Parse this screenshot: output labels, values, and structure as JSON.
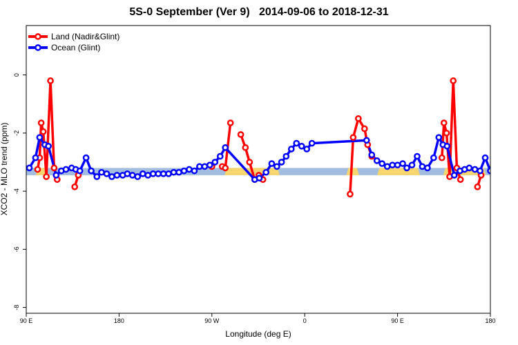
{
  "chart_data": {
    "type": "line",
    "title": "5S-0 September (Ver 9)   2014-09-06 to 2018-12-31",
    "xlabel": "Longitude (deg E)",
    "ylabel": "XCO2 - MLO trend (ppm)",
    "x_unit_note": "continuous longitude axis starting at 90E; 90=90E, 180=180, 270=90W, 360=0, 450=90E, 540=180",
    "xlim": [
      90,
      540
    ],
    "ylim": [
      -8.2,
      1.7
    ],
    "x_ticks": [
      {
        "value": 90,
        "label": "90 E"
      },
      {
        "value": 180,
        "label": "180"
      },
      {
        "value": 270,
        "label": "90 W"
      },
      {
        "value": 360,
        "label": "0"
      },
      {
        "value": 450,
        "label": "90 E"
      },
      {
        "value": 540,
        "label": "180"
      }
    ],
    "y_ticks": [
      {
        "value": 0,
        "label": "0"
      },
      {
        "value": -2,
        "label": "-2"
      },
      {
        "value": -4,
        "label": "-4"
      },
      {
        "value": -6,
        "label": "-6"
      },
      {
        "value": -8,
        "label": "-8"
      }
    ],
    "legend_position": "top-left",
    "surface_band": {
      "y_top": -3.2,
      "y_bottom": -3.45,
      "ocean_color": "#a3bde0",
      "land_color": "#f7d66f",
      "land_ranges": [
        [
          100,
          110
        ],
        [
          283,
          335
        ],
        [
          401,
          412
        ],
        [
          431,
          471
        ],
        [
          495,
          504
        ],
        [
          508,
          535
        ]
      ]
    },
    "series": [
      {
        "name": "Land (Nadir&Glint)",
        "color": "#ff0000",
        "segments": [
          [
            [
              101,
              -3.25
            ],
            [
              103,
              -2.85
            ],
            [
              104.5,
              -1.65
            ],
            [
              106.5,
              -1.95
            ],
            [
              109.5,
              -3.5
            ],
            [
              113.5,
              -0.2
            ],
            [
              117,
              -3.2
            ],
            [
              120,
              -3.6
            ]
          ],
          [
            [
              137,
              -3.85
            ],
            [
              140.5,
              -3.45
            ]
          ],
          [
            [
              270,
              -3.15
            ]
          ],
          [
            [
              280,
              -3.15
            ],
            [
              283,
              -3.2
            ],
            [
              288,
              -1.65
            ]
          ],
          [
            [
              298,
              -2.05
            ],
            [
              302.5,
              -2.5
            ],
            [
              306.5,
              -3.0
            ],
            [
              311.5,
              -3.6
            ],
            [
              315.5,
              -3.45
            ],
            [
              319.5,
              -3.6
            ]
          ],
          [
            [
              404,
              -4.1
            ],
            [
              407,
              -2.15
            ],
            [
              412,
              -1.5
            ],
            [
              418,
              -1.85
            ],
            [
              421,
              -2.4
            ],
            [
              425,
              -2.8
            ]
          ],
          [
            [
              493,
              -2.85
            ],
            [
              495,
              -1.65
            ],
            [
              497.5,
              -2.0
            ],
            [
              500.5,
              -3.5
            ],
            [
              504,
              -0.2
            ],
            [
              507.5,
              -3.2
            ],
            [
              511,
              -3.6
            ]
          ],
          [
            [
              527.5,
              -3.85
            ],
            [
              531,
              -3.45
            ]
          ]
        ]
      },
      {
        "name": "Ocean (Glint)",
        "color": "#0000ff",
        "points": [
          [
            93,
            -3.2
          ],
          [
            99,
            -2.85
          ],
          [
            103,
            -2.15
          ],
          [
            108,
            -2.4
          ],
          [
            111.5,
            -2.45
          ],
          [
            119,
            -3.45
          ],
          [
            124,
            -3.3
          ],
          [
            128.5,
            -3.25
          ],
          [
            134,
            -3.2
          ],
          [
            138,
            -3.25
          ],
          [
            142,
            -3.3
          ],
          [
            148,
            -2.85
          ],
          [
            153,
            -3.3
          ],
          [
            158.5,
            -3.5
          ],
          [
            163,
            -3.35
          ],
          [
            168,
            -3.4
          ],
          [
            173,
            -3.5
          ],
          [
            178,
            -3.45
          ],
          [
            183.5,
            -3.45
          ],
          [
            188,
            -3.4
          ],
          [
            193,
            -3.45
          ],
          [
            198,
            -3.5
          ],
          [
            203,
            -3.4
          ],
          [
            208,
            -3.45
          ],
          [
            213,
            -3.4
          ],
          [
            218,
            -3.4
          ],
          [
            223,
            -3.4
          ],
          [
            228,
            -3.4
          ],
          [
            233,
            -3.35
          ],
          [
            238,
            -3.35
          ],
          [
            243,
            -3.3
          ],
          [
            248,
            -3.25
          ],
          [
            253,
            -3.3
          ],
          [
            258,
            -3.15
          ],
          [
            263,
            -3.15
          ],
          [
            268,
            -3.1
          ],
          [
            273,
            -3.0
          ],
          [
            278,
            -2.8
          ],
          [
            283,
            -2.5
          ],
          [
            311.5,
            -3.6
          ],
          [
            316,
            -3.55
          ],
          [
            322.5,
            -3.35
          ],
          [
            328,
            -3.05
          ],
          [
            333,
            -3.15
          ],
          [
            337.5,
            -3.0
          ],
          [
            342,
            -2.8
          ],
          [
            347,
            -2.55
          ],
          [
            352,
            -2.35
          ],
          [
            357,
            -2.45
          ],
          [
            362,
            -2.55
          ],
          [
            367,
            -2.35
          ],
          [
            420,
            -2.25
          ],
          [
            425,
            -2.75
          ],
          [
            430,
            -2.95
          ],
          [
            435,
            -3.05
          ],
          [
            440,
            -3.15
          ],
          [
            445,
            -3.1
          ],
          [
            450,
            -3.1
          ],
          [
            455,
            -3.05
          ],
          [
            459,
            -3.2
          ],
          [
            464,
            -3.1
          ],
          [
            469,
            -2.8
          ],
          [
            474,
            -3.15
          ],
          [
            479,
            -3.2
          ],
          [
            485,
            -2.85
          ],
          [
            490,
            -2.15
          ],
          [
            494,
            -2.4
          ],
          [
            498,
            -2.45
          ],
          [
            505,
            -3.45
          ],
          [
            510.5,
            -3.3
          ],
          [
            515,
            -3.25
          ],
          [
            519.5,
            -3.2
          ],
          [
            525,
            -3.25
          ],
          [
            530,
            -3.3
          ],
          [
            535,
            -2.85
          ],
          [
            540,
            -3.3
          ],
          [
            545,
            -3.5
          ],
          [
            550,
            -3.35
          ],
          [
            555,
            -3.4
          ],
          [
            560,
            -3.5
          ],
          [
            565,
            -3.45
          ]
        ]
      }
    ]
  }
}
